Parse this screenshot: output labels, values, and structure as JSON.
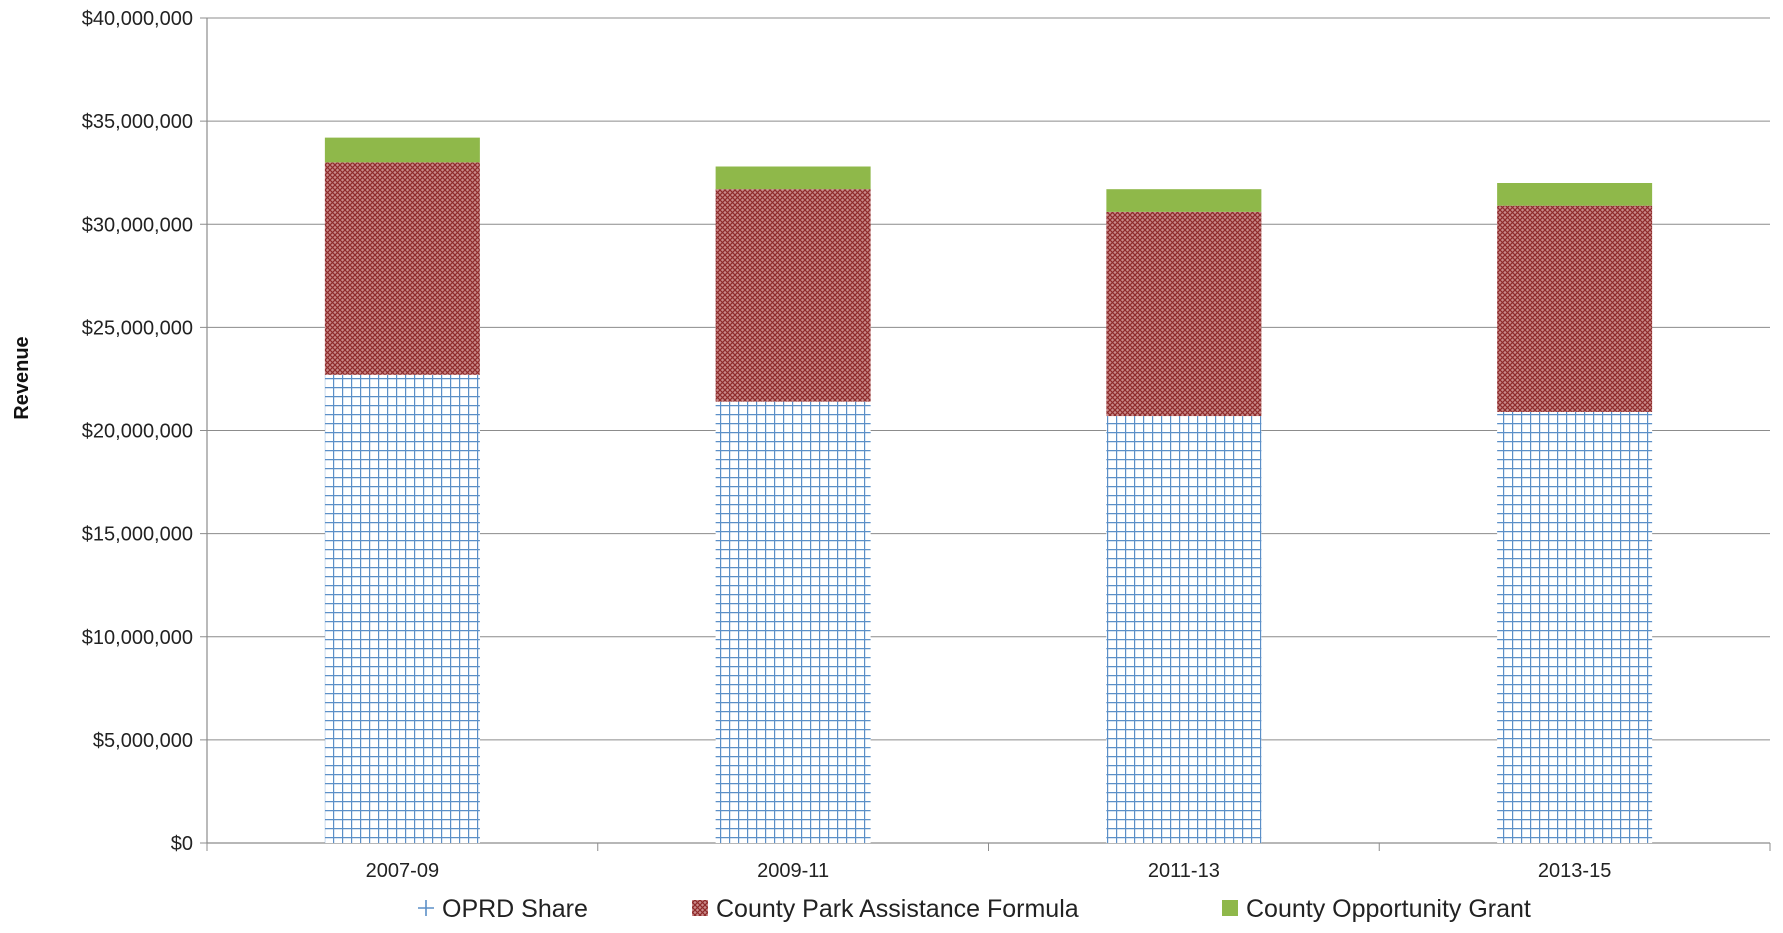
{
  "chart_data": {
    "type": "bar",
    "stacked": true,
    "title": "",
    "xlabel": "",
    "ylabel": "Revenue",
    "ylim": [
      0,
      40000000
    ],
    "ytick_step": 5000000,
    "grid": true,
    "legend_position": "bottom",
    "categories": [
      "2007-09",
      "2009-11",
      "2011-13",
      "2013-15"
    ],
    "series": [
      {
        "name": "OPRD Share",
        "values": [
          22700000,
          21400000,
          20700000,
          20900000
        ],
        "color": "#5b8fc7",
        "pattern": "grid"
      },
      {
        "name": "County Park Assistance Formula",
        "values": [
          10300000,
          10300000,
          9900000,
          10000000
        ],
        "color": "#b24a4a",
        "pattern": "crosshatch"
      },
      {
        "name": "County Opportunity Grant",
        "values": [
          1200000,
          1100000,
          1100000,
          1100000
        ],
        "color": "#8fb84a",
        "pattern": "solid"
      }
    ]
  }
}
